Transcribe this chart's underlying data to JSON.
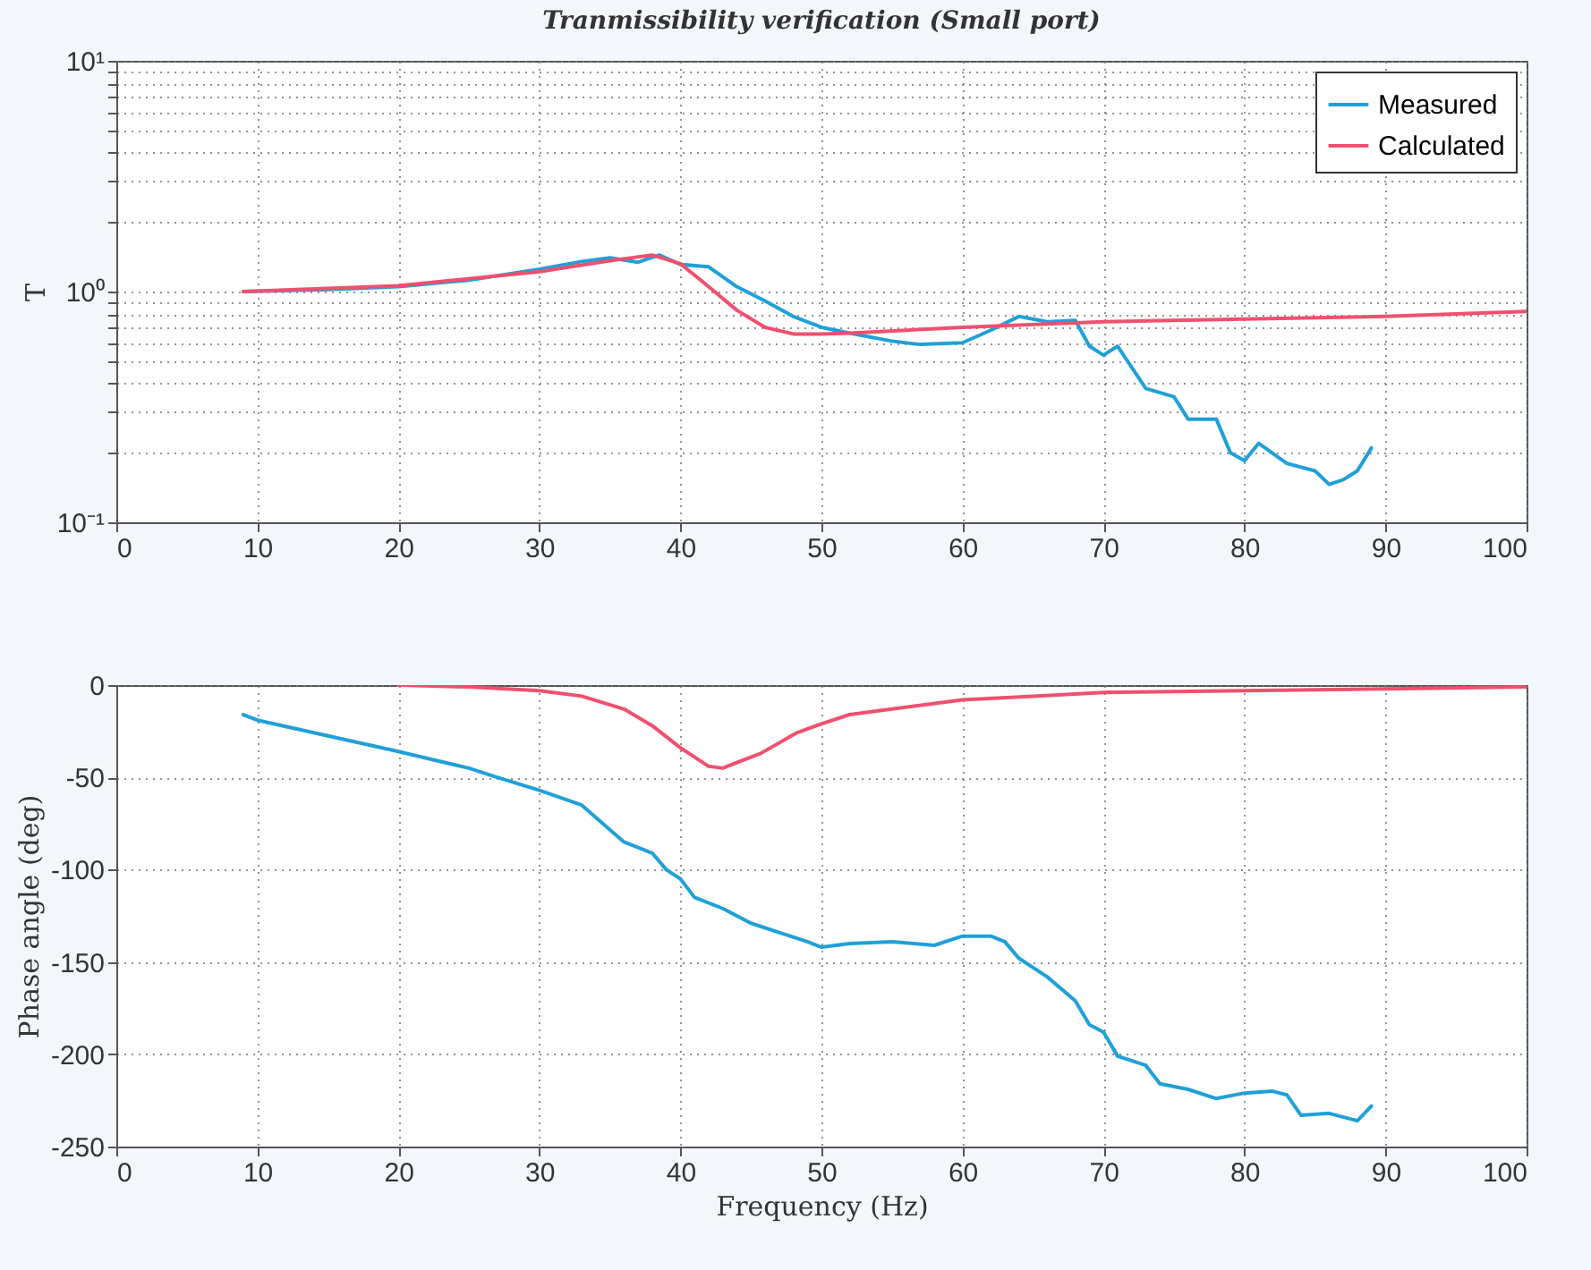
{
  "chart_data": [
    {
      "type": "line",
      "title": "Tranmissibility verification (Small port)",
      "ylabel": "T",
      "log": "y",
      "grid": true,
      "legend": "top right",
      "marker": "none",
      "line_style": "solid",
      "xlim": [
        0,
        100
      ],
      "xticks": [
        0,
        10,
        20,
        30,
        40,
        50,
        60,
        70,
        80,
        90,
        100
      ],
      "ylim": [
        0.1,
        10
      ],
      "yticks": [
        {
          "value": 0.1,
          "label": "10⁻¹"
        },
        {
          "value": 0.2,
          "label": null
        },
        {
          "value": 0.3,
          "label": null
        },
        {
          "value": 0.4,
          "label": null
        },
        {
          "value": 0.5,
          "label": null
        },
        {
          "value": 0.6,
          "label": null
        },
        {
          "value": 0.7,
          "label": null
        },
        {
          "value": 0.8,
          "label": null
        },
        {
          "value": 0.9,
          "label": null
        },
        {
          "value": 1,
          "label": "10⁰"
        },
        {
          "value": 2,
          "label": null
        },
        {
          "value": 3,
          "label": null
        },
        {
          "value": 4,
          "label": null
        },
        {
          "value": 5,
          "label": null
        },
        {
          "value": 6,
          "label": null
        },
        {
          "value": 7,
          "label": null
        },
        {
          "value": 8,
          "label": null
        },
        {
          "value": 9,
          "label": null
        },
        {
          "value": 10,
          "label": "10¹"
        }
      ],
      "series": [
        {
          "name": "Measured",
          "color": "#1fa0d8",
          "x": [
            9,
            15,
            20,
            25,
            30,
            33,
            35,
            37,
            38.5,
            40,
            42,
            44,
            46,
            48,
            50,
            52,
            55,
            57,
            60,
            62,
            64,
            66,
            68,
            69,
            70,
            71,
            73,
            75,
            76,
            78,
            79,
            80,
            81,
            83,
            85,
            86,
            87,
            88,
            89
          ],
          "values": [
            1.0,
            1.02,
            1.05,
            1.12,
            1.25,
            1.35,
            1.4,
            1.34,
            1.44,
            1.31,
            1.28,
            1.05,
            0.91,
            0.78,
            0.7,
            0.66,
            0.61,
            0.59,
            0.6,
            0.68,
            0.78,
            0.74,
            0.75,
            0.58,
            0.53,
            0.58,
            0.38,
            0.35,
            0.28,
            0.28,
            0.2,
            0.185,
            0.22,
            0.18,
            0.167,
            0.146,
            0.153,
            0.167,
            0.21
          ]
        },
        {
          "name": "Calculated",
          "color": "#f0506e",
          "x": [
            9,
            20,
            30,
            35,
            38,
            40,
            42,
            44,
            46,
            48,
            50,
            52,
            60,
            70,
            80,
            90,
            100
          ],
          "values": [
            1.0,
            1.06,
            1.22,
            1.36,
            1.44,
            1.32,
            1.05,
            0.83,
            0.7,
            0.655,
            0.655,
            0.66,
            0.7,
            0.74,
            0.76,
            0.78,
            0.82
          ]
        }
      ]
    },
    {
      "type": "line",
      "xlabel": "Frequency (Hz)",
      "ylabel": "Phase angle (deg)",
      "grid": true,
      "marker": "none",
      "line_style": "solid",
      "xlim": [
        0,
        100
      ],
      "xticks": [
        0,
        10,
        20,
        30,
        40,
        50,
        60,
        70,
        80,
        90,
        100
      ],
      "ylim": [
        -250,
        0
      ],
      "yticks": [
        -250,
        -200,
        -150,
        -100,
        -50,
        0
      ],
      "series": [
        {
          "color": "#1fa0d8",
          "x": [
            9,
            10,
            20,
            25,
            27,
            30,
            33,
            36,
            38,
            39,
            40,
            41,
            43,
            45,
            47,
            49,
            50,
            52,
            55,
            58,
            60,
            62,
            63,
            64,
            66,
            68,
            69,
            70,
            71,
            73,
            74,
            76,
            78,
            80,
            82,
            83,
            84,
            86,
            88,
            89
          ],
          "values": [
            -16,
            -19,
            -36,
            -45,
            -50,
            -57,
            -65,
            -85,
            -91,
            -100,
            -105,
            -115,
            -121,
            -129,
            -134,
            -139,
            -142,
            -140,
            -139,
            -141,
            -136,
            -136,
            -139,
            -148,
            -158,
            -171,
            -184,
            -188,
            -201,
            -206,
            -216,
            -219,
            -224,
            -221,
            -220,
            -222,
            -233,
            -232,
            -236,
            -228
          ]
        },
        {
          "color": "#f0506e",
          "x": [
            20,
            25,
            30,
            33,
            36,
            38,
            40,
            42,
            43,
            44,
            45.7,
            48.2,
            50,
            52,
            55,
            60,
            65,
            70,
            80,
            90,
            100
          ],
          "values": [
            0,
            -1,
            -3,
            -6,
            -13,
            -22,
            -34,
            -44,
            -45,
            -42,
            -37,
            -26,
            -21,
            -16,
            -13,
            -8,
            -6,
            -4,
            -3,
            -2,
            -1
          ]
        }
      ]
    }
  ]
}
